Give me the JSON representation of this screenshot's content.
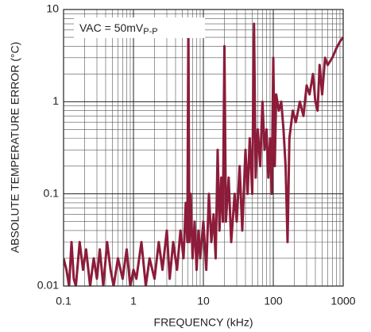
{
  "chart_data": {
    "type": "line",
    "xlabel": "FREQUENCY (kHz)",
    "ylabel": "ABSOLUTE TEMPERATURE ERROR (°C)",
    "annotation": {
      "text": "VAC = 50mV",
      "subscript": "P-P"
    },
    "xscale": "log",
    "yscale": "log",
    "grid": true,
    "xlim": [
      0.1,
      1000
    ],
    "ylim": [
      0.01,
      10
    ],
    "xticks": [
      0.1,
      1,
      10,
      100,
      1000
    ],
    "yticks": [
      0.01,
      0.1,
      1,
      10
    ],
    "xminor_ticks": [
      0.2,
      0.3,
      0.4,
      0.5,
      0.6,
      0.7,
      0.8,
      0.9,
      2,
      3,
      4,
      5,
      6,
      7,
      8,
      9,
      20,
      30,
      40,
      50,
      60,
      70,
      80,
      90,
      200,
      300,
      400,
      500,
      600,
      700,
      800,
      900
    ],
    "yminor_ticks": [
      0.02,
      0.03,
      0.04,
      0.05,
      0.06,
      0.07,
      0.08,
      0.09,
      0.2,
      0.3,
      0.4,
      0.5,
      0.6,
      0.7,
      0.8,
      0.9,
      2,
      3,
      4,
      5,
      6,
      7,
      8,
      9
    ],
    "series": [
      {
        "color": "#8c1c3a",
        "x": [
          0.1,
          0.11,
          0.12,
          0.13,
          0.14,
          0.15,
          0.17,
          0.19,
          0.21,
          0.24,
          0.27,
          0.3,
          0.33,
          0.37,
          0.42,
          0.47,
          0.52,
          0.6,
          0.7,
          0.8,
          0.9,
          1.0,
          1.1,
          1.3,
          1.5,
          1.7,
          2,
          2.3,
          2.6,
          3,
          3.3,
          3.7,
          4.2,
          4.7,
          5.2,
          5.6,
          5.9,
          6.1,
          6.3,
          6.6,
          7,
          7.5,
          8,
          8.5,
          9,
          10,
          11,
          12,
          13,
          14,
          15,
          16,
          17,
          18,
          19,
          20,
          21,
          23,
          25,
          28,
          30,
          33,
          36,
          40,
          43,
          46,
          50,
          53,
          56,
          60,
          65,
          70,
          75,
          80,
          85,
          90,
          95,
          100,
          105,
          110,
          120,
          130,
          140,
          150,
          160,
          170,
          190,
          210,
          240,
          270,
          300,
          330,
          370,
          400,
          430,
          460,
          500,
          550,
          600,
          700,
          800,
          900,
          1000
        ],
        "values": [
          0.02,
          0.015,
          0.01,
          0.03,
          0.012,
          0.01,
          0.03,
          0.015,
          0.025,
          0.01,
          0.02,
          0.012,
          0.025,
          0.01,
          0.03,
          0.015,
          0.01,
          0.02,
          0.012,
          0.025,
          0.01,
          0.015,
          0.012,
          0.03,
          0.01,
          0.02,
          0.012,
          0.03,
          0.015,
          0.04,
          0.012,
          0.03,
          0.015,
          0.04,
          0.02,
          0.08,
          0.03,
          7,
          0.03,
          0.1,
          0.02,
          0.05,
          0.015,
          0.04,
          0.02,
          0.05,
          0.015,
          0.1,
          0.03,
          0.06,
          0.02,
          0.3,
          0.04,
          0.15,
          0.05,
          4,
          0.05,
          0.15,
          0.03,
          0.1,
          0.05,
          0.2,
          0.04,
          0.3,
          0.1,
          0.4,
          0.1,
          7,
          0.15,
          0.5,
          0.2,
          1,
          0.3,
          0.5,
          0.15,
          0.4,
          0.1,
          3,
          0.2,
          1.2,
          0.8,
          1,
          0.5,
          0.2,
          0.03,
          0.4,
          0.8,
          0.6,
          1,
          0.7,
          1.5,
          1.2,
          2,
          1,
          0.8,
          2.5,
          1.2,
          3,
          2.5,
          3,
          3.8,
          4.5,
          5
        ]
      }
    ]
  }
}
